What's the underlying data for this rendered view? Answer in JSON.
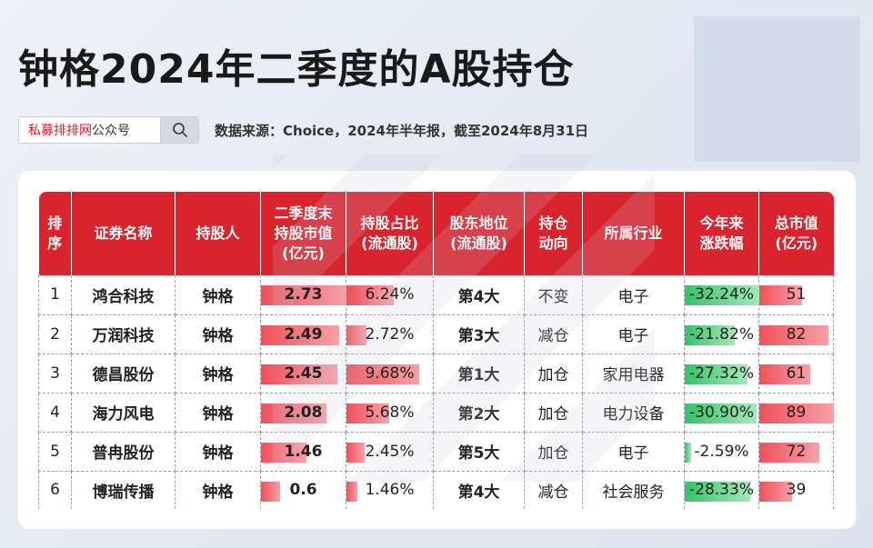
{
  "title": "钟格2024年二季度的A股持仓",
  "search": {
    "brand_red": "私募排排网",
    "brand_dark": "公众号"
  },
  "source": "数据来源：Choice，2024年半年报，截至2024年8月31日",
  "headers": [
    [
      "排",
      "序"
    ],
    [
      "证券名称"
    ],
    [
      "持股人"
    ],
    [
      "二季度末",
      "持股市值",
      "(亿元)"
    ],
    [
      "持股占比",
      "(流通股)"
    ],
    [
      "股东地位",
      "(流通股)"
    ],
    [
      "持仓",
      "动向"
    ],
    [
      "所属行业"
    ],
    [
      "今年来",
      "涨跌幅"
    ],
    [
      "总市值",
      "(亿元)"
    ]
  ],
  "rows": [
    {
      "rank": "1",
      "name": "鸿合科技",
      "holder": "钟格",
      "value": "2.73",
      "value_num": 2.73,
      "ratio": "6.24%",
      "ratio_num": 6.24,
      "position": "第4大",
      "trend": "不变",
      "industry": "电子",
      "change": "-32.24%",
      "change_num": -32.24,
      "cap": "51",
      "cap_num": 51
    },
    {
      "rank": "2",
      "name": "万润科技",
      "holder": "钟格",
      "value": "2.49",
      "value_num": 2.49,
      "ratio": "2.72%",
      "ratio_num": 2.72,
      "position": "第3大",
      "trend": "减仓",
      "industry": "电子",
      "change": "-21.82%",
      "change_num": -21.82,
      "cap": "82",
      "cap_num": 82
    },
    {
      "rank": "3",
      "name": "德昌股份",
      "holder": "钟格",
      "value": "2.45",
      "value_num": 2.45,
      "ratio": "9.68%",
      "ratio_num": 9.68,
      "position": "第1大",
      "trend": "加仓",
      "industry": "家用电器",
      "change": "-27.32%",
      "change_num": -27.32,
      "cap": "61",
      "cap_num": 61
    },
    {
      "rank": "4",
      "name": "海力风电",
      "holder": "钟格",
      "value": "2.08",
      "value_num": 2.08,
      "ratio": "5.68%",
      "ratio_num": 5.68,
      "position": "第2大",
      "trend": "加仓",
      "industry": "电力设备",
      "change": "-30.90%",
      "change_num": -30.9,
      "cap": "89",
      "cap_num": 89
    },
    {
      "rank": "5",
      "name": "普冉股份",
      "holder": "钟格",
      "value": "1.46",
      "value_num": 1.46,
      "ratio": "2.45%",
      "ratio_num": 2.45,
      "position": "第5大",
      "trend": "加仓",
      "industry": "电子",
      "change": "-2.59%",
      "change_num": -2.59,
      "cap": "72",
      "cap_num": 72
    },
    {
      "rank": "6",
      "name": "博瑞传播",
      "holder": "钟格",
      "value": "0.6",
      "value_num": 0.6,
      "ratio": "1.46%",
      "ratio_num": 1.46,
      "position": "第4大",
      "trend": "减仓",
      "industry": "社会服务",
      "change": "-28.33%",
      "change_num": -28.33,
      "cap": "39",
      "cap_num": 39
    }
  ],
  "colors": {
    "header_red": "#d9232d",
    "bar_red": "#f0505a",
    "bar_green": "#36c26a"
  },
  "icons": {
    "search": "search-icon"
  }
}
